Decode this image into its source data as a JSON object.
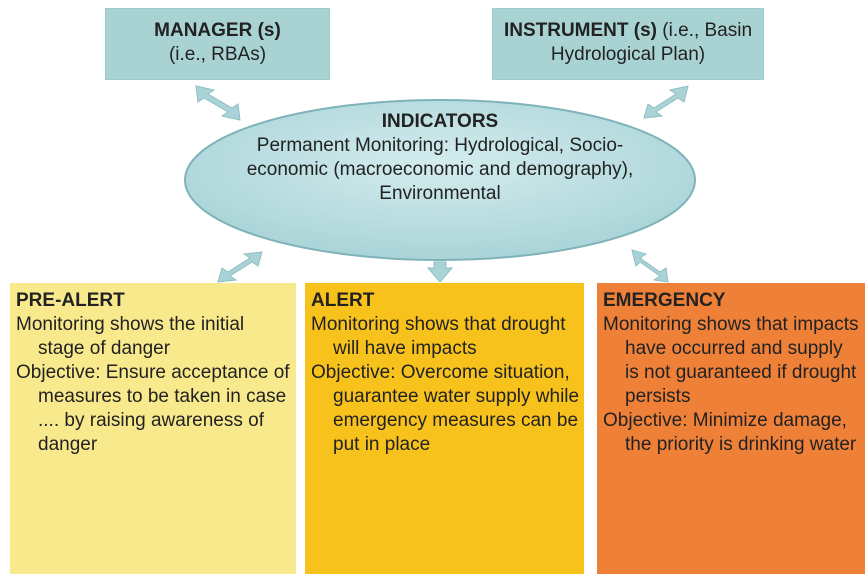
{
  "nodes": {
    "manager": {
      "title": "MANAGER (s)",
      "subtitle": "(i.e., RBAs)"
    },
    "instrument": {
      "title": "INSTRUMENT (s)",
      "subtitle": "(i.e., Basin Hydrological Plan)"
    },
    "indicators": {
      "title": "INDICATORS",
      "text": "Permanent Monitoring: Hydrological, Socio-economic (macroeconomic and demography), Environmental"
    }
  },
  "stages": [
    {
      "title": "PRE-ALERT",
      "items": [
        "Monitoring shows the initial stage of danger",
        "Objective: Ensure acceptance of measures to be taken in case .... by raising awareness of danger"
      ]
    },
    {
      "title": "ALERT",
      "items": [
        "Monitoring shows that drought will have impacts",
        "Objective: Overcome situation, guarantee water supply while emergency measures can be put in place"
      ]
    },
    {
      "title": "EMERGENCY",
      "items": [
        "Monitoring shows that impacts have occurred and supply is not guaranteed if drought persists",
        "Objective: Minimize damage, the priority is drinking water"
      ]
    }
  ]
}
